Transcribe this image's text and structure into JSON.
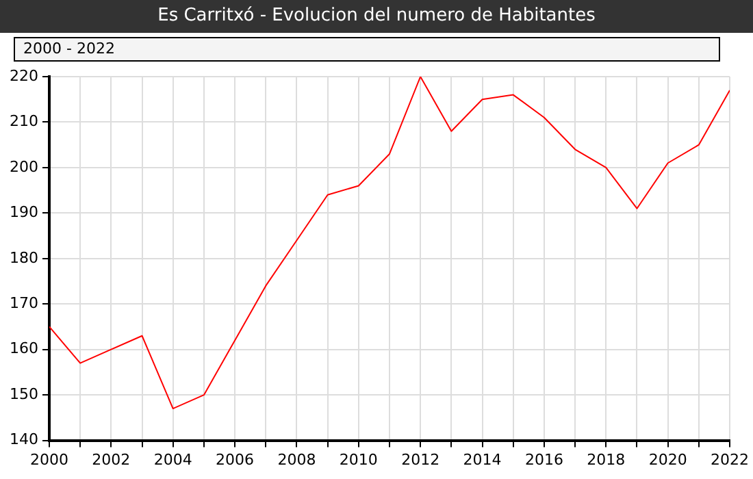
{
  "chart_data": {
    "type": "line",
    "title": "Es Carritxó - Evolucion del numero de Habitantes",
    "subtitle": "2000 - 2022",
    "x": [
      2000,
      2001,
      2002,
      2003,
      2004,
      2005,
      2006,
      2007,
      2008,
      2009,
      2010,
      2011,
      2012,
      2013,
      2014,
      2015,
      2016,
      2017,
      2018,
      2019,
      2020,
      2021,
      2022
    ],
    "series": [
      {
        "color": "#ff0000",
        "values": [
          165,
          157,
          160,
          163,
          147,
          150,
          162,
          174,
          184,
          194,
          196,
          203,
          220,
          208,
          215,
          216,
          211,
          204,
          200,
          191,
          201,
          205,
          217
        ]
      }
    ],
    "xlim": [
      2000,
      2022
    ],
    "xticks": [
      2000,
      {
        "value": 2001,
        "label": null
      },
      2002,
      {
        "value": 2003,
        "label": null
      },
      2004,
      {
        "value": 2005,
        "label": null
      },
      2006,
      {
        "value": 2007,
        "label": null
      },
      2008,
      {
        "value": 2009,
        "label": null
      },
      2010,
      {
        "value": 2011,
        "label": null
      },
      2012,
      {
        "value": 2013,
        "label": null
      },
      2014,
      {
        "value": 2015,
        "label": null
      },
      2016,
      {
        "value": 2017,
        "label": null
      },
      2018,
      {
        "value": 2019,
        "label": null
      },
      2020,
      {
        "value": 2021,
        "label": null
      },
      2022
    ],
    "ylim": [
      140,
      220
    ],
    "yticks": [
      140,
      150,
      160,
      170,
      180,
      190,
      200,
      210,
      220
    ],
    "grid": true,
    "legend": false,
    "marker": "none",
    "line_style": "solid"
  }
}
